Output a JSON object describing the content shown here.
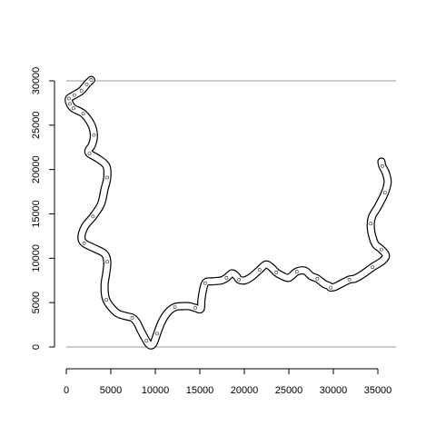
{
  "chart_data": {
    "type": "line",
    "title": "",
    "xlabel": "",
    "ylabel": "",
    "xlim": [
      0,
      35000
    ],
    "ylim": [
      0,
      30000
    ],
    "x_ticks": [
      0,
      5000,
      10000,
      15000,
      20000,
      25000,
      30000,
      35000
    ],
    "y_ticks": [
      0,
      5000,
      10000,
      15000,
      20000,
      25000,
      30000
    ],
    "x_tick_labels": [
      "0",
      "5000",
      "10000",
      "15000",
      "20000",
      "25000",
      "30000",
      "35000"
    ],
    "y_tick_labels": [
      "0",
      "5000",
      "10000",
      "15000",
      "20000",
      "25000",
      "30000"
    ],
    "reference_lines": [
      {
        "orientation": "horizontal",
        "y": 0
      },
      {
        "orientation": "horizontal",
        "y": 30000
      }
    ],
    "grid": false,
    "colors": {
      "line": "#000000",
      "reference": "#9a9a9a"
    },
    "series": [
      {
        "x": [
          2800,
          2300,
          1700,
          900,
          300,
          400,
          800,
          1900,
          2800,
          3100,
          2900,
          2500,
          2600,
          3600,
          4500,
          4600,
          4300,
          3900,
          3000,
          2100,
          1700,
          2000,
          3200,
          4300,
          4600,
          4500,
          4300,
          4500,
          5600,
          6600,
          7400,
          7900,
          8400,
          9000,
          9400,
          9800,
          10200,
          10700,
          11400,
          12200,
          13000,
          13800,
          14500,
          15100,
          15200,
          15600,
          16500,
          17400,
          18000,
          18600,
          19100,
          19400,
          20000,
          20800,
          21700,
          22400,
          23000,
          23600,
          24300,
          25000,
          25900,
          26800,
          27500,
          28200,
          29000,
          29500,
          29700,
          30200,
          31000,
          31800,
          32400,
          33300,
          34400,
          35500,
          35900,
          35400,
          34700,
          34300,
          34200,
          34400,
          35000,
          35800,
          36100,
          35900,
          35500,
          35400
        ],
        "y": [
          30100,
          29600,
          28900,
          28400,
          28000,
          27400,
          26900,
          26300,
          25100,
          23900,
          22800,
          22200,
          21800,
          21200,
          20400,
          19100,
          17800,
          16100,
          14700,
          13600,
          12400,
          11700,
          11100,
          10500,
          9600,
          8400,
          6900,
          5300,
          3900,
          3500,
          3300,
          2800,
          1800,
          700,
          200,
          400,
          1500,
          2800,
          3900,
          4500,
          4600,
          4600,
          4400,
          4300,
          5500,
          7200,
          7400,
          7500,
          7800,
          8300,
          8000,
          7600,
          7500,
          7900,
          8700,
          9300,
          9000,
          8400,
          8000,
          7800,
          8500,
          8600,
          8000,
          7700,
          7100,
          6900,
          6700,
          6800,
          7200,
          7600,
          7700,
          8200,
          9000,
          9700,
          10300,
          11000,
          11600,
          12800,
          13900,
          14800,
          15800,
          17400,
          18600,
          19600,
          20400,
          20900
        ]
      }
    ]
  }
}
